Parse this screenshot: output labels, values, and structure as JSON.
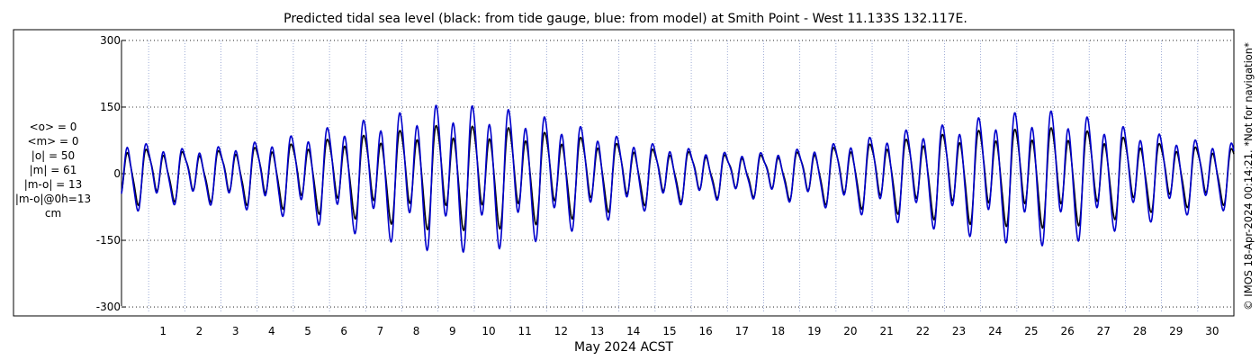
{
  "chart_data": {
    "type": "line",
    "title": "Predicted tidal sea level (black: from tide gauge, blue: from model) at Smith Point - West 11.133S 132.117E.",
    "xlabel": "May 2024 ACST",
    "ylabel": "",
    "side_note": "© IMOS 18-Apr-2024 00:14:21. *Not for navigation*",
    "stats": [
      "<o> = 0",
      "<m> = 0",
      "|o| = 50",
      "|m| = 61",
      "|m-o| = 13",
      "|m-o|@0h=13",
      "cm"
    ],
    "xlim": [
      0.25,
      31.0
    ],
    "ylim": [
      -310,
      310
    ],
    "x_ticks": [
      1,
      2,
      3,
      4,
      5,
      6,
      7,
      8,
      9,
      10,
      11,
      12,
      13,
      14,
      15,
      16,
      17,
      18,
      19,
      20,
      21,
      22,
      23,
      24,
      25,
      26,
      27,
      28,
      29,
      30
    ],
    "x_tick_labels": [
      "1",
      "2",
      "3",
      "4",
      "5",
      "6",
      "7",
      "8",
      "9",
      "10",
      "11",
      "12",
      "13",
      "14",
      "15",
      "16",
      "17",
      "18",
      "19",
      "20",
      "21",
      "22",
      "23",
      "24",
      "25",
      "26",
      "27",
      "28",
      "29",
      "30"
    ],
    "y_ticks": [
      -300,
      -150,
      0,
      150,
      300
    ],
    "y_tick_labels": [
      "-300",
      "-150",
      "0",
      "150",
      "300"
    ],
    "grid": true,
    "tide_series": [
      {
        "name": "black: from tide gauge",
        "color": "#000000",
        "amp": [
          60,
          50,
          45,
          48,
          55,
          62,
          72,
          80,
          90,
          100,
          98,
          95,
          85,
          75,
          62,
          50,
          45,
          38,
          38,
          45,
          55,
          62,
          72,
          82,
          90,
          92,
          95,
          88,
          75,
          62,
          55,
          52
        ],
        "phase": -0.3
      },
      {
        "name": "blue: from model",
        "color": "#0000cc",
        "amp": [
          75,
          60,
          50,
          55,
          65,
          78,
          95,
          110,
          125,
          140,
          138,
          130,
          115,
          95,
          75,
          60,
          50,
          42,
          42,
          50,
          62,
          75,
          90,
          100,
          115,
          125,
          128,
          115,
          95,
          80,
          68,
          62
        ],
        "phase": -0.25
      }
    ]
  }
}
